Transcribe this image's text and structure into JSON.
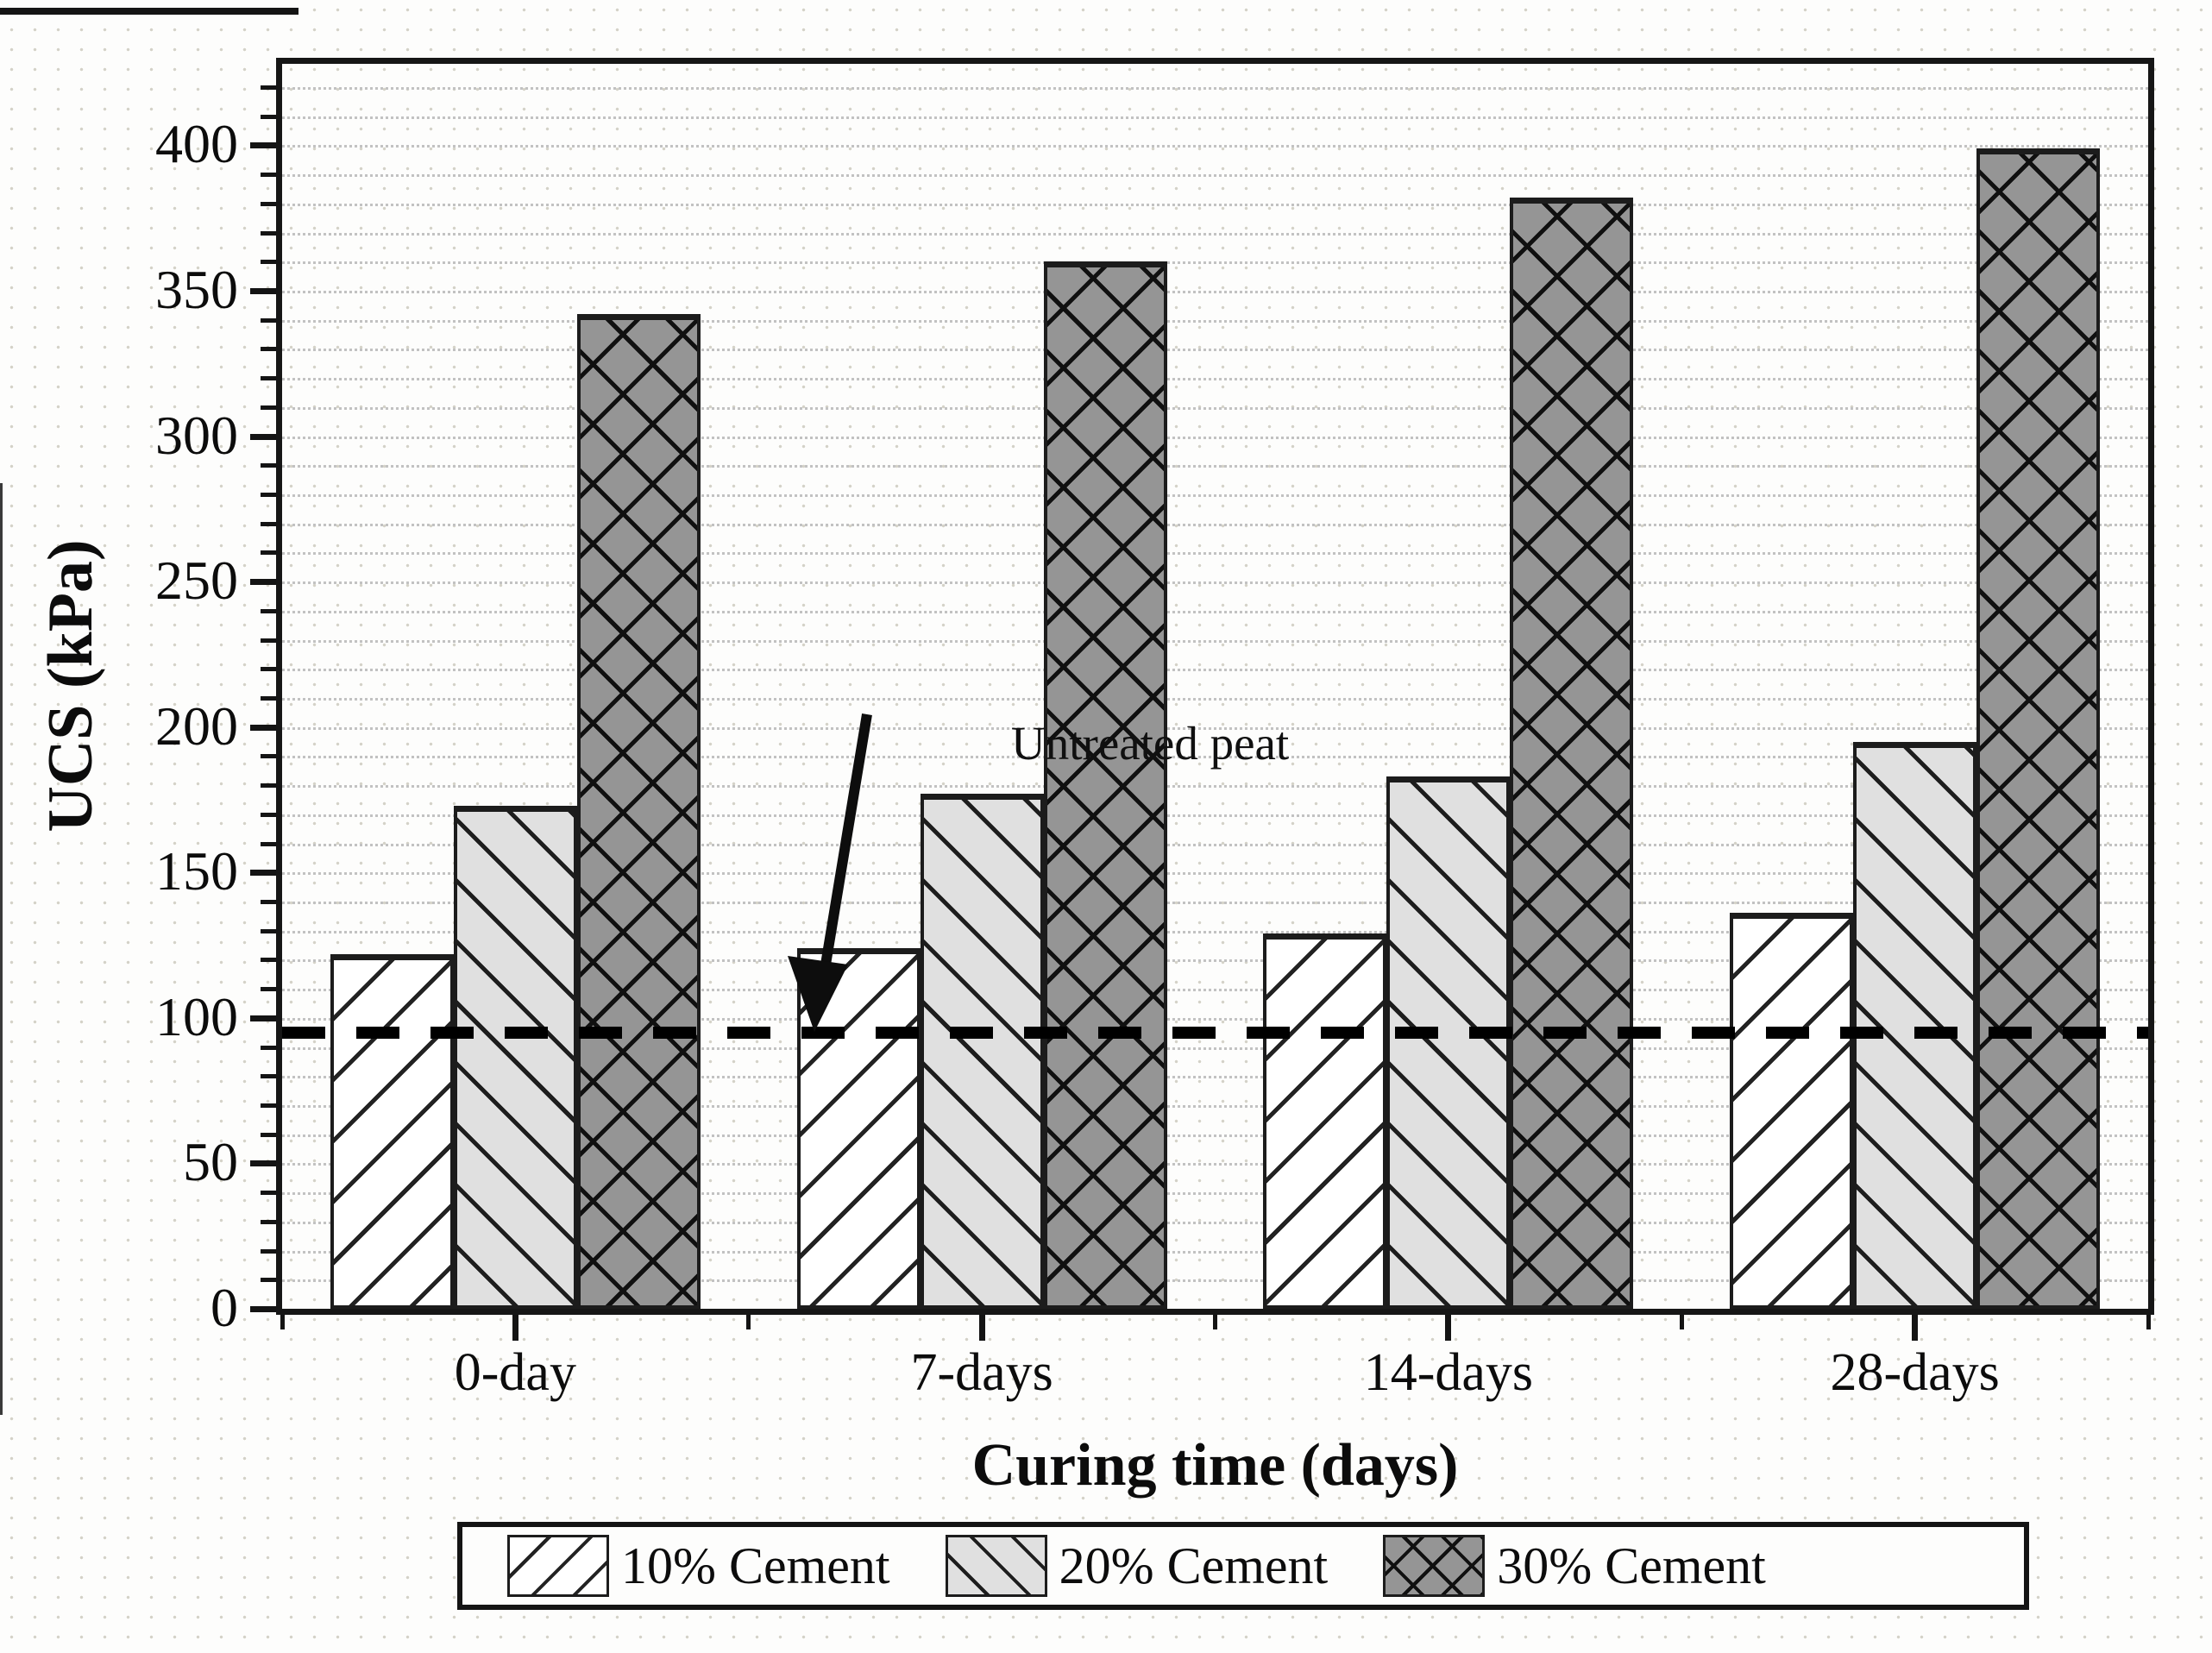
{
  "chart_data": {
    "type": "bar",
    "title": "",
    "categories": [
      "0-day",
      "7-days",
      "14-days",
      "28-days"
    ],
    "series": [
      {
        "name": "10% Cement",
        "values": [
          122,
          124,
          129,
          136
        ],
        "fill": "#ffffff",
        "hatch": "/",
        "hatch_color": "#222222"
      },
      {
        "name": "20% Cement",
        "values": [
          173,
          177,
          183,
          195
        ],
        "fill": "#e0e0e0",
        "hatch": "\\",
        "hatch_color": "#1d1d1d"
      },
      {
        "name": "30% Cement",
        "values": [
          342,
          360,
          382,
          399
        ],
        "fill": "#959595",
        "hatch": "x",
        "hatch_color": "#101010"
      }
    ],
    "xlabel": "Curing time (days)",
    "ylabel": "UCS (kPa)",
    "ylim": [
      0,
      428
    ],
    "yticks_major": [
      0,
      50,
      100,
      150,
      200,
      250,
      300,
      350,
      400
    ],
    "y_minor_step": 10,
    "y_minor_max": 420,
    "grid": "horizontal dotted minor gridlines every 10 kPa",
    "legend_position": "bottom",
    "reference_line": {
      "label": "Untreated peat",
      "value": 95,
      "style": "dashed",
      "color": "#000000"
    }
  }
}
